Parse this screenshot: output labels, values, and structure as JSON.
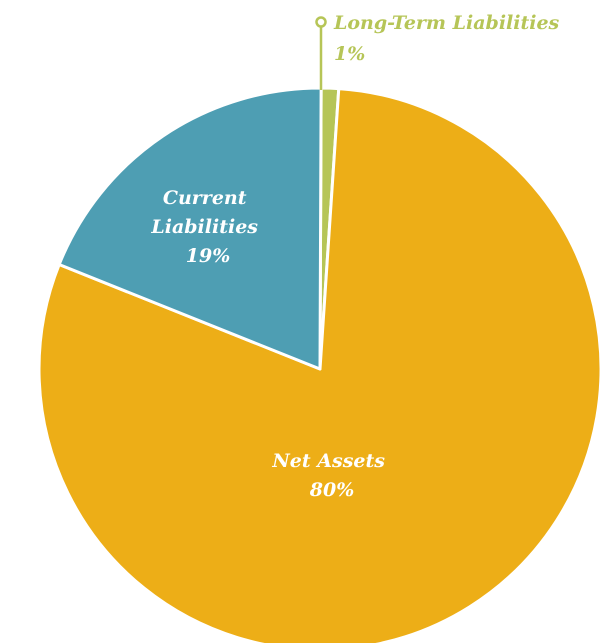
{
  "chart_data": {
    "type": "pie",
    "slices": [
      {
        "label": "Net Assets",
        "value": 80,
        "value_label": "80%",
        "color": "#EDAE17"
      },
      {
        "label": "Current Liabilities",
        "label_lines": [
          "Current",
          "Liabilities"
        ],
        "value": 19,
        "value_label": "19%",
        "color": "#4E9EB3"
      },
      {
        "label": "Long-Term Liabilities",
        "value": 1,
        "value_label": "1%",
        "color": "#B6C557"
      }
    ],
    "title": "",
    "legend": "none"
  }
}
